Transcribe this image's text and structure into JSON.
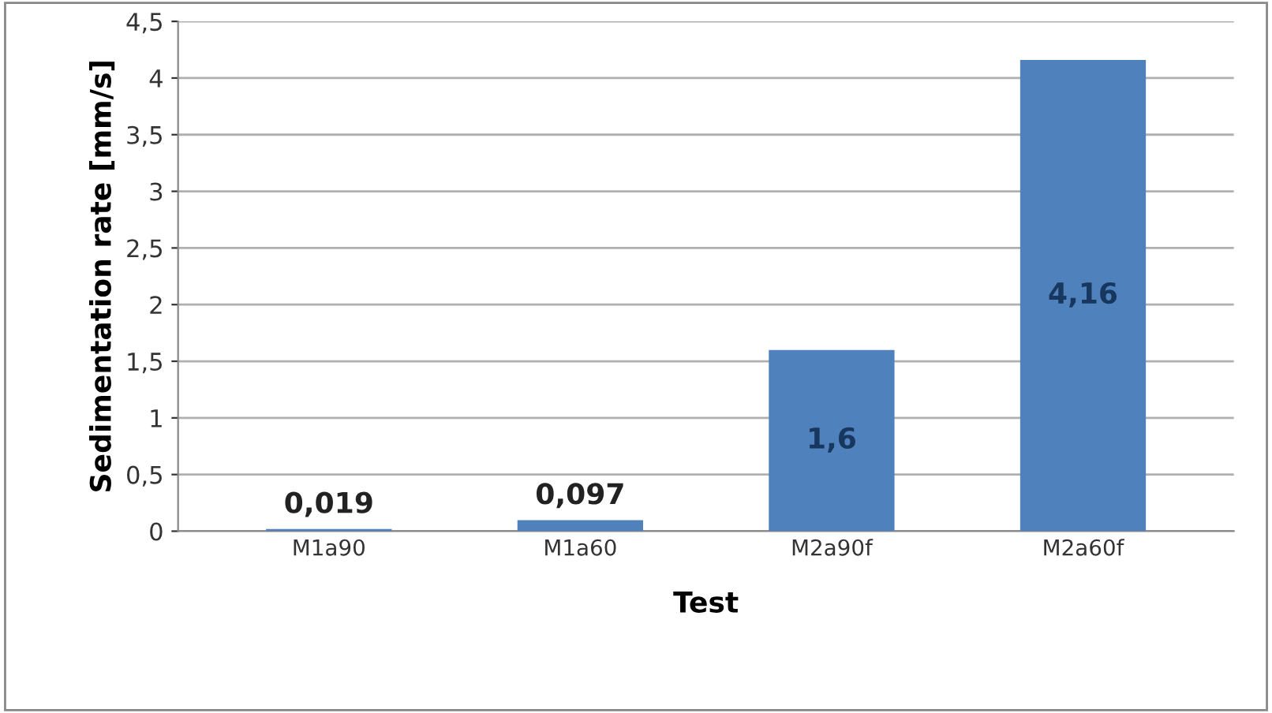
{
  "chart_data": {
    "type": "bar",
    "xlabel": "Test",
    "ylabel": "Sedimentation rate [mm/s]",
    "categories": [
      "M1a90",
      "M1a60",
      "M2a90f",
      "M2a60f"
    ],
    "values": [
      0.019,
      0.097,
      1.6,
      4.16
    ],
    "value_labels": [
      "0,019",
      "0,097",
      "1,6",
      "4,16"
    ],
    "color": "#4f81bd",
    "ylim": [
      0,
      4.5
    ],
    "yticks": [
      0,
      {
        "value": 0.5,
        "label": "0,5"
      },
      1,
      {
        "value": 1.5,
        "label": "1,5"
      },
      2,
      {
        "value": 2.5,
        "label": "2,5"
      },
      3,
      {
        "value": 3.5,
        "label": "3,5"
      },
      4,
      {
        "value": 4.5,
        "label": "4,5"
      }
    ],
    "grid": "y",
    "legend": false
  }
}
